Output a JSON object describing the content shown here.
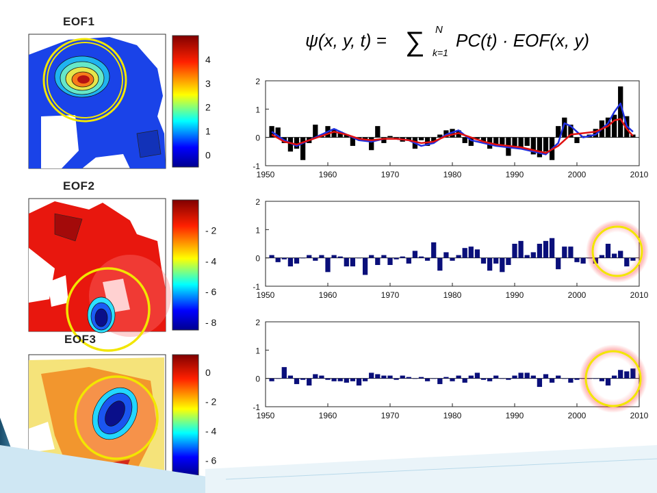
{
  "formula": {
    "lhs": "ψ(x, y, t) = ",
    "sum_upper": "N",
    "sum_lower": "k=1",
    "rhs": "PC(t) · EOF(x, y)"
  },
  "maps": [
    {
      "title": "EOF1",
      "colorbar_ticks": [
        "4",
        "3",
        "2",
        "1",
        "0"
      ],
      "colorbar_range": [
        -0.5,
        5
      ]
    },
    {
      "title": "EOF2",
      "colorbar_ticks": [
        "- 2",
        "- 4",
        "- 6",
        "- 8"
      ],
      "colorbar_range": [
        -8.5,
        0
      ]
    },
    {
      "title": "EOF3",
      "colorbar_ticks": [
        "0",
        "- 2",
        "- 4",
        "- 6"
      ],
      "colorbar_range": [
        -7,
        1.2
      ]
    }
  ],
  "colors": {
    "bar_pc1": "#000000",
    "bar_pc": "#0a0f7a",
    "line_blue": "#1f2fe0",
    "line_red": "#e01010",
    "highlight_circle": "#f2e600",
    "glow": "#ff3b3b"
  },
  "chart_data": [
    {
      "type": "bar",
      "x": [
        1951,
        1952,
        1953,
        1954,
        1955,
        1956,
        1957,
        1958,
        1959,
        1960,
        1961,
        1962,
        1963,
        1964,
        1965,
        1966,
        1967,
        1968,
        1969,
        1970,
        1971,
        1972,
        1973,
        1974,
        1975,
        1976,
        1977,
        1978,
        1979,
        1980,
        1981,
        1982,
        1983,
        1984,
        1985,
        1986,
        1987,
        1988,
        1989,
        1990,
        1991,
        1992,
        1993,
        1994,
        1995,
        1996,
        1997,
        1998,
        1999,
        2000,
        2001,
        2002,
        2003,
        2004,
        2005,
        2006,
        2007,
        2008,
        2009
      ],
      "values": [
        0.4,
        0.35,
        -0.2,
        -0.5,
        -0.4,
        -0.8,
        -0.2,
        0.45,
        0.1,
        0.4,
        0.3,
        0.2,
        0.1,
        -0.3,
        -0.05,
        -0.1,
        -0.45,
        0.4,
        -0.2,
        0.05,
        -0.05,
        -0.15,
        -0.1,
        -0.4,
        -0.1,
        -0.3,
        -0.15,
        0.1,
        0.25,
        0.3,
        0.25,
        -0.2,
        -0.3,
        -0.05,
        -0.2,
        -0.4,
        -0.3,
        -0.25,
        -0.65,
        -0.3,
        -0.4,
        -0.3,
        -0.6,
        -0.7,
        -0.5,
        -0.8,
        0.4,
        0.7,
        0.45,
        -0.2,
        0.05,
        0.1,
        0.3,
        0.6,
        0.7,
        0.8,
        1.8,
        0.75,
        0.1
      ],
      "lines": [
        {
          "name": "",
          "x": [
            1951,
            1953,
            1955,
            1957,
            1959,
            1961,
            1963,
            1965,
            1967,
            1969,
            1971,
            1973,
            1975,
            1977,
            1979,
            1981,
            1983,
            1985,
            1987,
            1989,
            1991,
            1993,
            1995,
            1997,
            1998,
            1999,
            2001,
            2003,
            2005,
            2006,
            2007,
            2008,
            2009
          ],
          "values": [
            0.2,
            -0.1,
            -0.3,
            -0.1,
            0.1,
            0.3,
            0.1,
            -0.1,
            -0.15,
            -0.05,
            -0.05,
            -0.1,
            -0.3,
            -0.2,
            0.1,
            0.25,
            -0.1,
            -0.2,
            -0.3,
            -0.35,
            -0.4,
            -0.5,
            -0.6,
            -0.2,
            0.5,
            0.4,
            0.0,
            0.1,
            0.5,
            0.9,
            1.2,
            0.4,
            0.2
          ]
        },
        {
          "name": "",
          "x": [
            1951,
            1953,
            1955,
            1957,
            1959,
            1961,
            1963,
            1965,
            1967,
            1969,
            1971,
            1973,
            1975,
            1977,
            1979,
            1981,
            1983,
            1985,
            1987,
            1989,
            1991,
            1993,
            1995,
            1997,
            1999,
            2001,
            2003,
            2005,
            2006,
            2007,
            2008,
            2009
          ],
          "values": [
            0.1,
            -0.15,
            -0.25,
            -0.1,
            0.05,
            0.2,
            0.1,
            -0.05,
            -0.1,
            -0.05,
            -0.05,
            -0.1,
            -0.2,
            -0.15,
            0.05,
            0.15,
            0.0,
            -0.15,
            -0.25,
            -0.3,
            -0.35,
            -0.45,
            -0.55,
            -0.3,
            0.1,
            0.15,
            0.2,
            0.4,
            0.6,
            0.65,
            0.3,
            0.05
          ]
        }
      ],
      "xlim": [
        1950,
        2010
      ],
      "ylim": [
        -1,
        2
      ],
      "xticks": [
        1950,
        1960,
        1970,
        1980,
        1990,
        2000,
        2010
      ],
      "yticks": [
        -1,
        0,
        1,
        2
      ]
    },
    {
      "type": "bar",
      "x": [
        1951,
        1952,
        1953,
        1954,
        1955,
        1956,
        1957,
        1958,
        1959,
        1960,
        1961,
        1962,
        1963,
        1964,
        1965,
        1966,
        1967,
        1968,
        1969,
        1970,
        1971,
        1972,
        1973,
        1974,
        1975,
        1976,
        1977,
        1978,
        1979,
        1980,
        1981,
        1982,
        1983,
        1984,
        1985,
        1986,
        1987,
        1988,
        1989,
        1990,
        1991,
        1992,
        1993,
        1994,
        1995,
        1996,
        1997,
        1998,
        1999,
        2000,
        2001,
        2002,
        2003,
        2004,
        2005,
        2006,
        2007,
        2008,
        2009
      ],
      "values": [
        0.1,
        -0.15,
        -0.05,
        -0.3,
        -0.2,
        0.0,
        0.1,
        -0.1,
        0.1,
        -0.5,
        0.1,
        0.05,
        -0.3,
        -0.3,
        0.0,
        -0.6,
        0.1,
        -0.25,
        0.1,
        -0.25,
        -0.05,
        0.05,
        -0.2,
        0.25,
        0.05,
        -0.1,
        0.55,
        -0.45,
        0.2,
        -0.1,
        0.1,
        0.35,
        0.4,
        0.3,
        -0.2,
        -0.45,
        -0.2,
        -0.5,
        -0.25,
        0.5,
        0.6,
        0.1,
        0.2,
        0.5,
        0.6,
        0.7,
        -0.4,
        0.4,
        0.4,
        -0.15,
        -0.2,
        0.0,
        -0.2,
        0.1,
        0.5,
        0.15,
        0.25,
        -0.3,
        -0.1
      ],
      "xlim": [
        1950,
        2010
      ],
      "ylim": [
        -1,
        2
      ],
      "xticks": [
        1950,
        1960,
        1970,
        1980,
        1990,
        2000,
        2010
      ],
      "yticks": [
        -1,
        0,
        1,
        2
      ]
    },
    {
      "type": "bar",
      "x": [
        1951,
        1952,
        1953,
        1954,
        1955,
        1956,
        1957,
        1958,
        1959,
        1960,
        1961,
        1962,
        1963,
        1964,
        1965,
        1966,
        1967,
        1968,
        1969,
        1970,
        1971,
        1972,
        1973,
        1974,
        1975,
        1976,
        1977,
        1978,
        1979,
        1980,
        1981,
        1982,
        1983,
        1984,
        1985,
        1986,
        1987,
        1988,
        1989,
        1990,
        1991,
        1992,
        1993,
        1994,
        1995,
        1996,
        1997,
        1998,
        1999,
        2000,
        2001,
        2002,
        2003,
        2004,
        2005,
        2006,
        2007,
        2008,
        2009
      ],
      "values": [
        -0.1,
        0.0,
        0.4,
        0.1,
        -0.2,
        -0.05,
        -0.25,
        0.15,
        0.1,
        -0.05,
        -0.1,
        -0.1,
        -0.15,
        -0.1,
        -0.25,
        -0.1,
        0.2,
        0.15,
        0.1,
        0.1,
        -0.05,
        0.1,
        0.05,
        0.0,
        0.05,
        -0.1,
        0.0,
        -0.2,
        0.05,
        -0.1,
        0.1,
        -0.15,
        0.1,
        0.2,
        -0.05,
        -0.1,
        0.1,
        0.0,
        -0.05,
        0.1,
        0.2,
        0.2,
        0.1,
        -0.3,
        0.15,
        -0.15,
        0.1,
        0.0,
        -0.15,
        -0.05,
        0.0,
        0.0,
        0.0,
        -0.1,
        -0.25,
        0.1,
        0.3,
        0.25,
        0.35
      ],
      "xlim": [
        1950,
        2010
      ],
      "ylim": [
        -1,
        2
      ],
      "xticks": [
        1950,
        1960,
        1970,
        1980,
        1990,
        2000,
        2010
      ],
      "yticks": [
        -1,
        0,
        1,
        2
      ]
    }
  ]
}
